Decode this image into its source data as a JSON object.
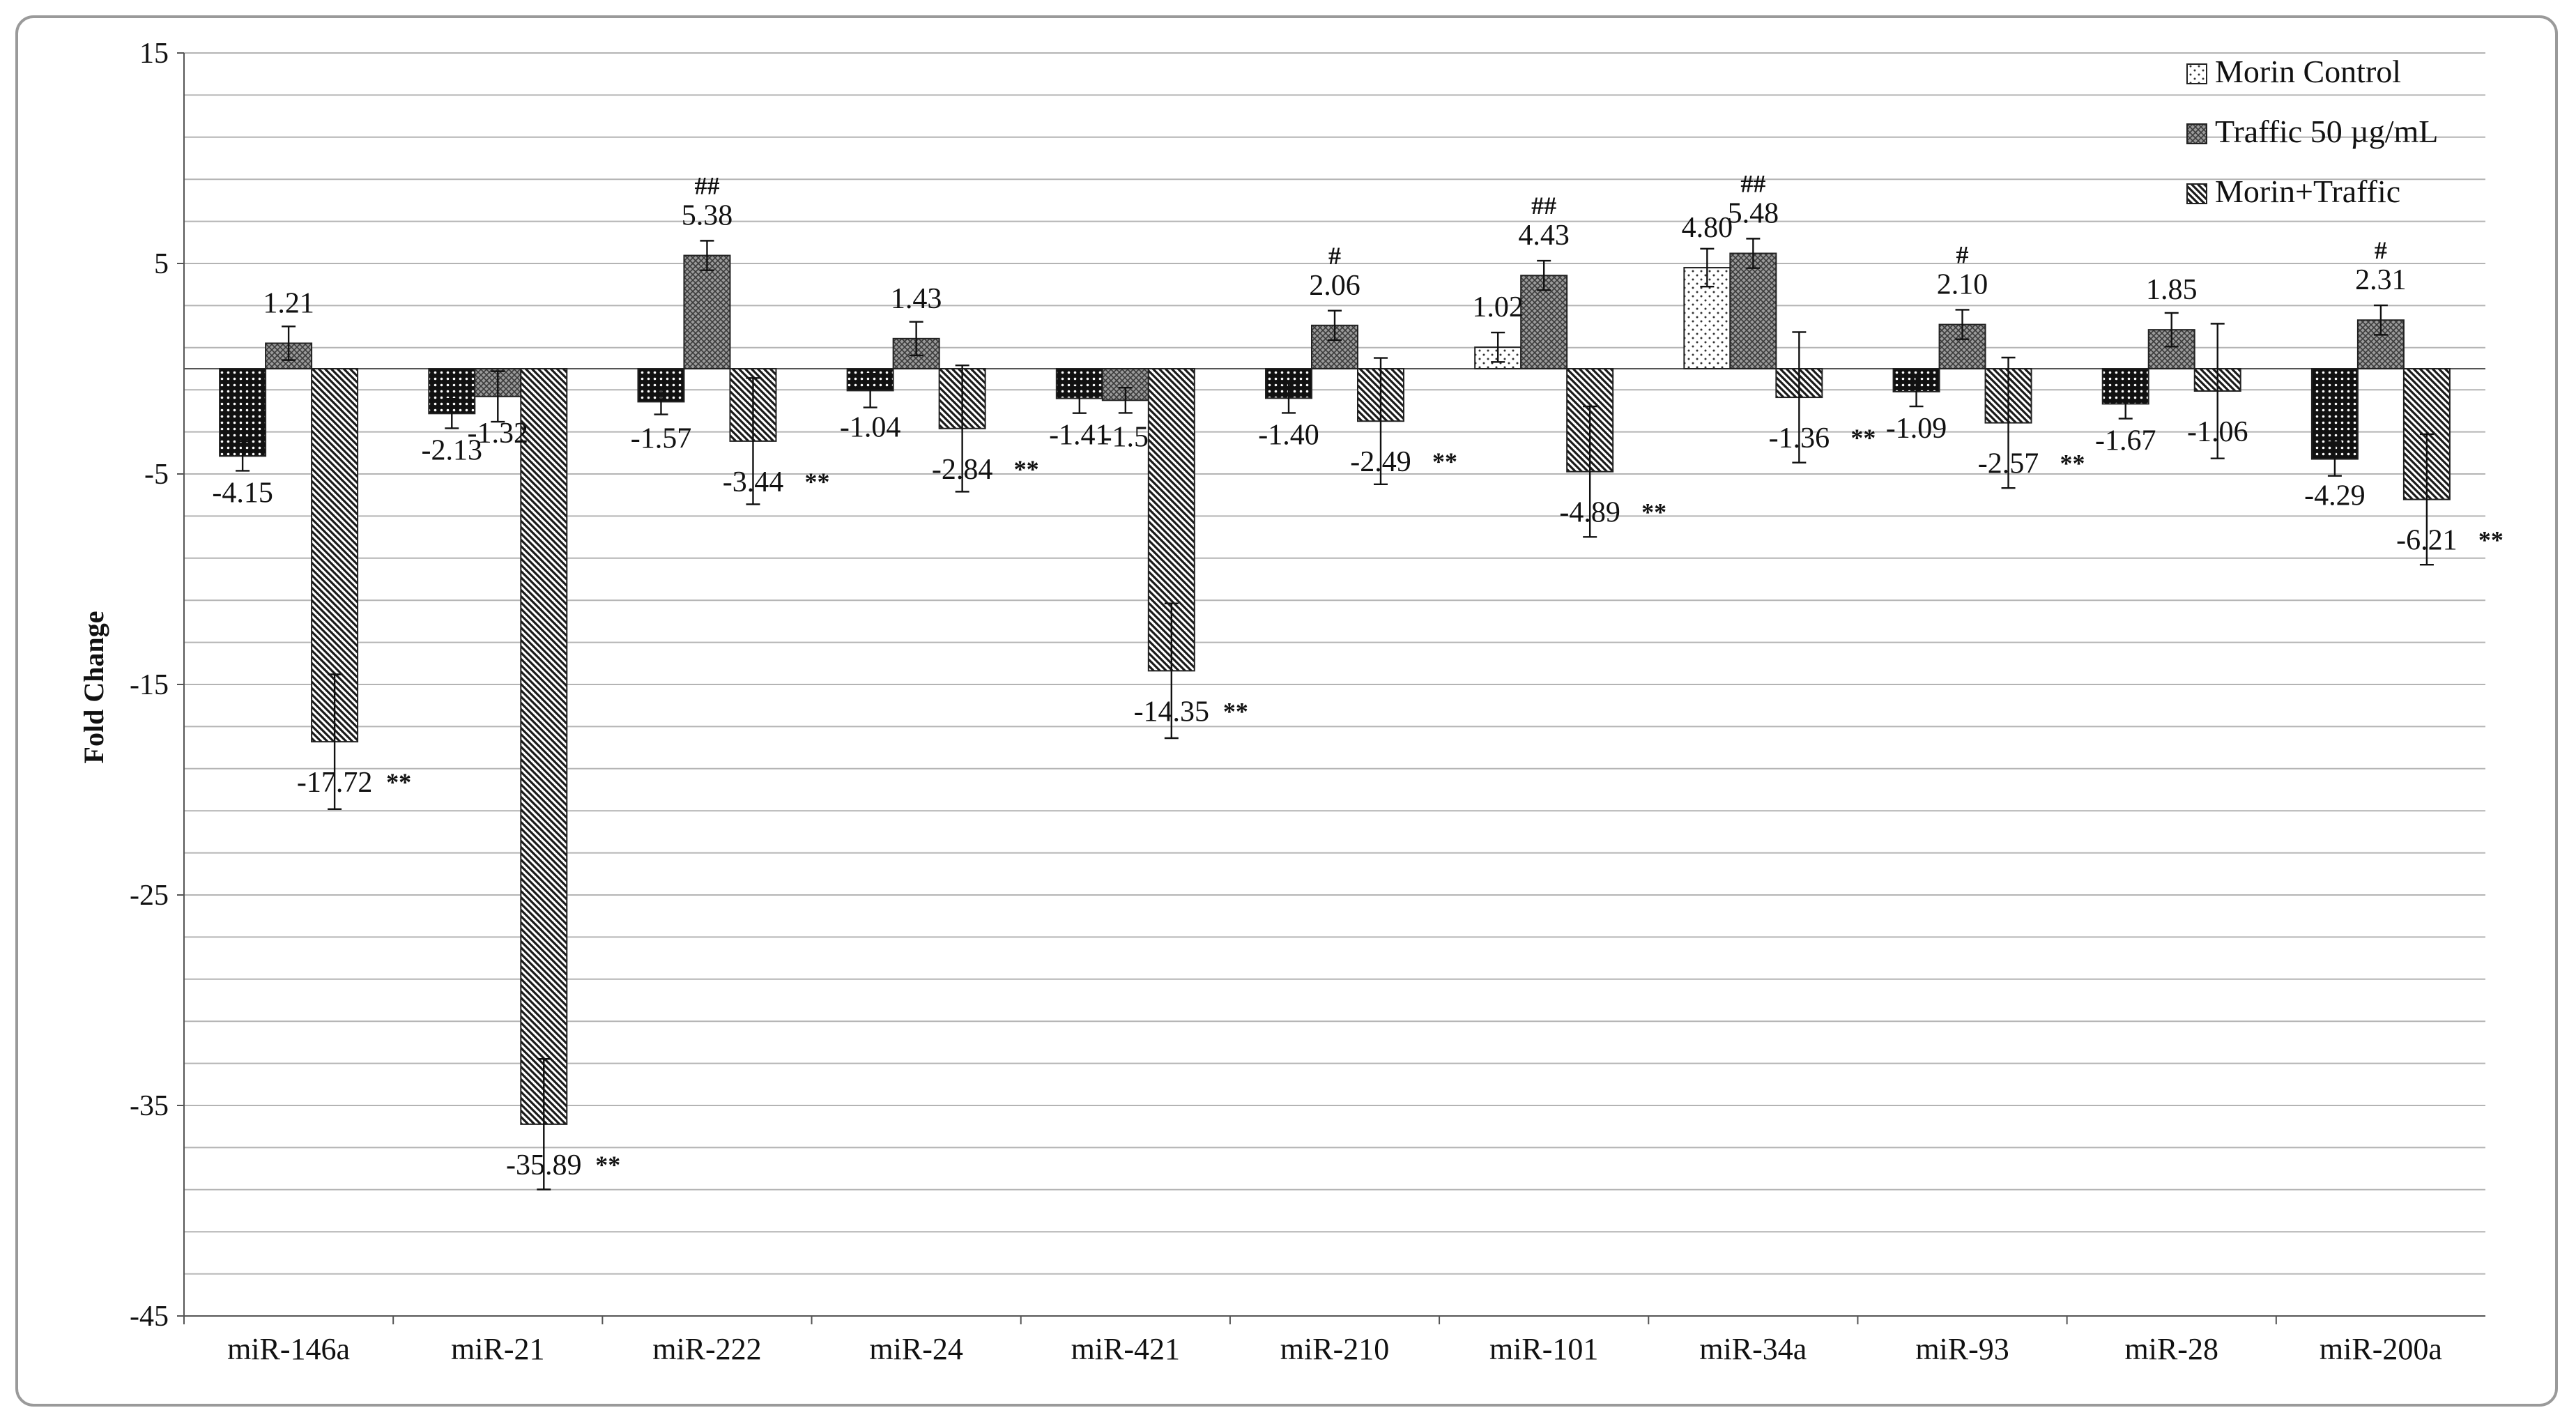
{
  "chart_data": {
    "type": "bar",
    "title": "",
    "xlabel": "",
    "ylabel": "Fold Change",
    "ylim": [
      -45,
      15
    ],
    "yticks": [
      15,
      5,
      -5,
      -15,
      -25,
      -35,
      -45
    ],
    "grid": true,
    "legend_position": "top-right",
    "categories": [
      "miR-146a",
      "miR-21",
      "miR-222",
      "miR-24",
      "miR-421",
      "miR-210",
      "miR-101",
      "miR-34a",
      "miR-93",
      "miR-28",
      "miR-200a"
    ],
    "series": [
      {
        "name": "Morin Control",
        "pattern": "dots",
        "values": [
          -4.15,
          -2.13,
          -1.57,
          -1.04,
          -1.41,
          -1.4,
          1.02,
          4.8,
          -1.09,
          -1.67,
          -4.29
        ],
        "labels": [
          "-4.15",
          "-2.13",
          "-1.57",
          "-1.04",
          "-1.41",
          "-1.40",
          "1.02",
          "4.80",
          "-1.09",
          "-1.67",
          "-4.29"
        ],
        "errors": [
          0.7,
          0.7,
          0.6,
          0.8,
          0.7,
          0.7,
          0.7,
          0.9,
          0.7,
          0.7,
          0.8
        ],
        "sig": [
          "",
          "",
          "",
          "",
          "",
          "",
          "",
          "",
          "",
          "",
          ""
        ]
      },
      {
        "name": "Traffic 50 µg/mL",
        "pattern": "crosshatch",
        "values": [
          1.21,
          -1.32,
          5.38,
          1.43,
          -1.5,
          2.06,
          4.43,
          5.48,
          2.1,
          1.85,
          2.31
        ],
        "labels": [
          "1.21",
          "-1.32",
          "5.38",
          "1.43",
          "-1.5",
          "2.06",
          "4.43",
          "5.48",
          "2.10",
          "1.85",
          "2.31"
        ],
        "errors": [
          0.8,
          1.2,
          0.7,
          0.8,
          0.6,
          0.7,
          0.7,
          0.7,
          0.7,
          0.8,
          0.7
        ],
        "sig": [
          "",
          "",
          "##",
          "",
          "",
          "#",
          "##",
          "##",
          "#",
          "",
          "#"
        ]
      },
      {
        "name": "Morin+Traffic",
        "pattern": "diagonal",
        "values": [
          -17.72,
          -35.89,
          -3.44,
          -2.84,
          -14.35,
          -2.49,
          -4.89,
          -1.36,
          -2.57,
          -1.06,
          -6.21
        ],
        "labels": [
          "-17.72",
          "-35.89",
          "-3.44",
          "-2.84",
          "-14.35",
          "-2.49",
          "-4.89",
          "-1.36",
          "-2.57",
          "-1.06",
          "-6.21"
        ],
        "errors": [
          3.2,
          3.1,
          3.0,
          3.0,
          3.2,
          3.0,
          3.1,
          3.1,
          3.1,
          3.2,
          3.1
        ],
        "sig": [
          "**",
          "**",
          "**",
          "**",
          "**",
          "**",
          "**",
          "**",
          "**",
          "",
          "**"
        ]
      }
    ]
  }
}
